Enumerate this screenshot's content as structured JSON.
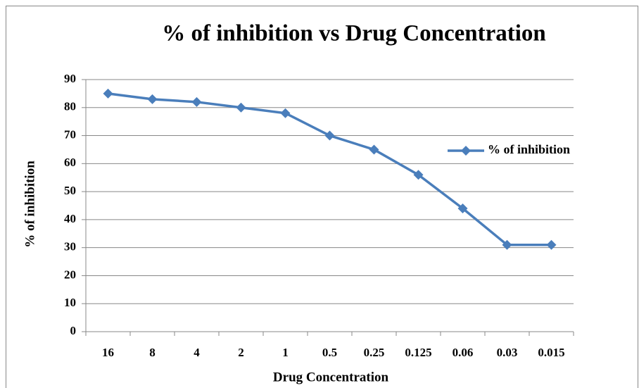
{
  "chart_data": {
    "type": "line",
    "title": "% of inhibition vs Drug Concentration",
    "x_label": "Drug Concentration",
    "y_label": "% of inhibition",
    "categories": [
      "16",
      "8",
      "4",
      "2",
      "1",
      "0.5",
      "0.25",
      "0.125",
      "0.06",
      "0.03",
      "0.015"
    ],
    "series": [
      {
        "name": "% of inhibition",
        "color": "#4a7ebb",
        "values": [
          85,
          83,
          82,
          80,
          78,
          70,
          65,
          56,
          44,
          31,
          31
        ]
      }
    ],
    "ylim": [
      0,
      90
    ],
    "yticks": [
      0,
      10,
      20,
      30,
      40,
      50,
      60,
      70,
      80,
      90
    ],
    "grid": true,
    "legend": "right"
  }
}
